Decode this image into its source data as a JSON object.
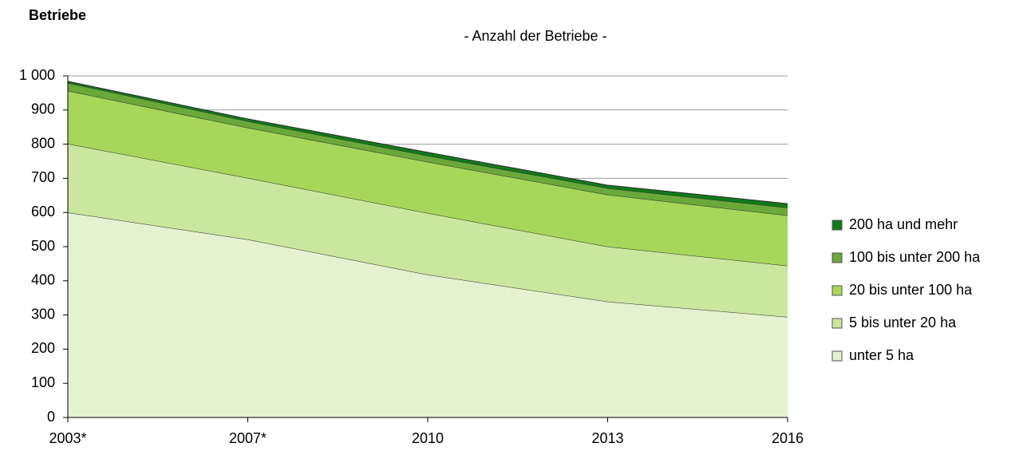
{
  "chart_data": {
    "type": "stacked_area",
    "title": "- Anzahl der Betriebe -",
    "y_label": "Betriebe",
    "categories": [
      "2003*",
      "2007*",
      "2010",
      "2013",
      "2016"
    ],
    "series": [
      {
        "name": "unter 5 ha",
        "color": "#e5f2d0",
        "values": [
          600,
          521,
          418,
          339,
          294
        ]
      },
      {
        "name": "5 bis unter 20 ha",
        "color": "#cbe69e",
        "values": [
          201,
          180,
          180,
          161,
          150
        ]
      },
      {
        "name": "20 bis unter 100 ha",
        "color": "#a6d75a",
        "values": [
          155,
          147,
          150,
          152,
          147
        ]
      },
      {
        "name": "100 bis unter 200 ha",
        "color": "#6aa83a",
        "values": [
          23,
          19,
          18,
          19,
          23
        ]
      },
      {
        "name": "200 ha und mehr",
        "color": "#117a19",
        "values": [
          5,
          7,
          10,
          9,
          12
        ]
      }
    ],
    "ylim": [
      0,
      1000
    ],
    "yticks": [
      0,
      100,
      200,
      300,
      400,
      500,
      600,
      700,
      800,
      900,
      {
        "value": 1000,
        "label": "1 000"
      }
    ],
    "grid": true,
    "legend": "right"
  }
}
